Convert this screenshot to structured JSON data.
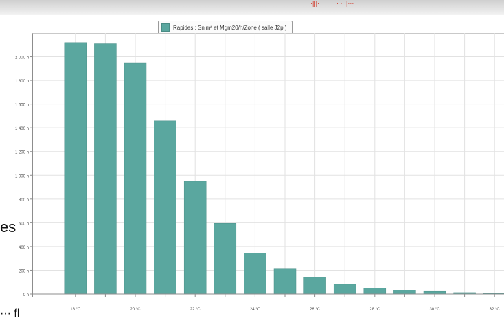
{
  "header": {
    "fragment_left": "·|||·",
    "fragment_right": "·  · ·|···"
  },
  "side_text": {
    "upper": "es",
    "lower": "··· fl"
  },
  "colors": {
    "bar": "#5aa79f",
    "bar_stroke": "#4b8f88",
    "grid": "#e2e2e2",
    "axis": "#8d8d8d"
  },
  "chart_data": {
    "type": "bar",
    "legend": "Rapides : Snlm² et Mgm20/h/Zone ( salle J2p )",
    "legend_position": "top",
    "grid": true,
    "categories": [
      "18 °C",
      "19 °C",
      "20 °C",
      "21 °C",
      "22 °C",
      "23 °C",
      "24 °C",
      "25 °C",
      "26 °C",
      "27 °C",
      "28 °C",
      "29 °C",
      "30 °C",
      "31 °C",
      "32 °C"
    ],
    "x_tick_labels": [
      "18 °C",
      "",
      "20 °C",
      "",
      "22 °C",
      "",
      "24 °C",
      "",
      "26 °C",
      "",
      "28 °C",
      "",
      "30 °C",
      "",
      "32 °C"
    ],
    "values": [
      2120,
      2110,
      1945,
      1460,
      950,
      595,
      345,
      210,
      140,
      82,
      50,
      32,
      22,
      12,
      5
    ],
    "ylim": [
      0,
      2200
    ],
    "y_ticks": [
      0,
      200,
      400,
      600,
      800,
      1000,
      1200,
      1400,
      1600,
      1800,
      2000
    ],
    "y_tick_labels": [
      "0 h",
      "200 h",
      "400 h",
      "600 h",
      "800 h",
      "1 000 h",
      "1 200 h",
      "1 400 h",
      "1 600 h",
      "1 800 h",
      "2 000 h"
    ]
  }
}
